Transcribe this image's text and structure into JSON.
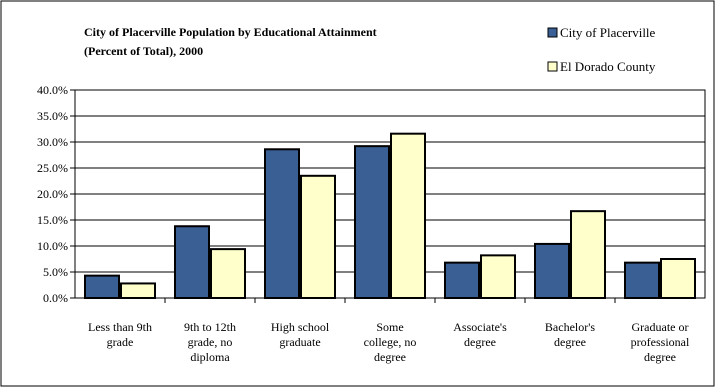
{
  "chart_data": {
    "type": "bar",
    "title_lines": [
      "City of Placerville Population by Educational Attainment",
      "(Percent of Total), 2000"
    ],
    "categories": [
      [
        "Less than 9th",
        "grade"
      ],
      [
        "9th to 12th",
        "grade, no",
        "diploma"
      ],
      [
        "High school",
        "graduate"
      ],
      [
        "Some",
        "college, no",
        "degree"
      ],
      [
        "Associate's",
        "degree"
      ],
      [
        "Bachelor's",
        "degree"
      ],
      [
        "Graduate or",
        "professional",
        "degree"
      ]
    ],
    "series": [
      {
        "name": "City of Placerville",
        "values": [
          4.3,
          13.8,
          28.6,
          29.2,
          6.8,
          10.4,
          6.8
        ]
      },
      {
        "name": "El Dorado County",
        "values": [
          2.8,
          9.4,
          23.5,
          31.6,
          8.2,
          16.7,
          7.5
        ]
      }
    ],
    "y_ticks": [
      "0.0%",
      "5.0%",
      "10.0%",
      "15.0%",
      "20.0%",
      "25.0%",
      "30.0%",
      "35.0%",
      "40.0%"
    ],
    "ylim": [
      0,
      40
    ],
    "grid": true,
    "legend_position": "top-right",
    "colors": {
      "series_1": "#3a5f95",
      "series_2": "#ffffcc",
      "bar_stroke": "#000000",
      "gridline": "#000000"
    }
  }
}
